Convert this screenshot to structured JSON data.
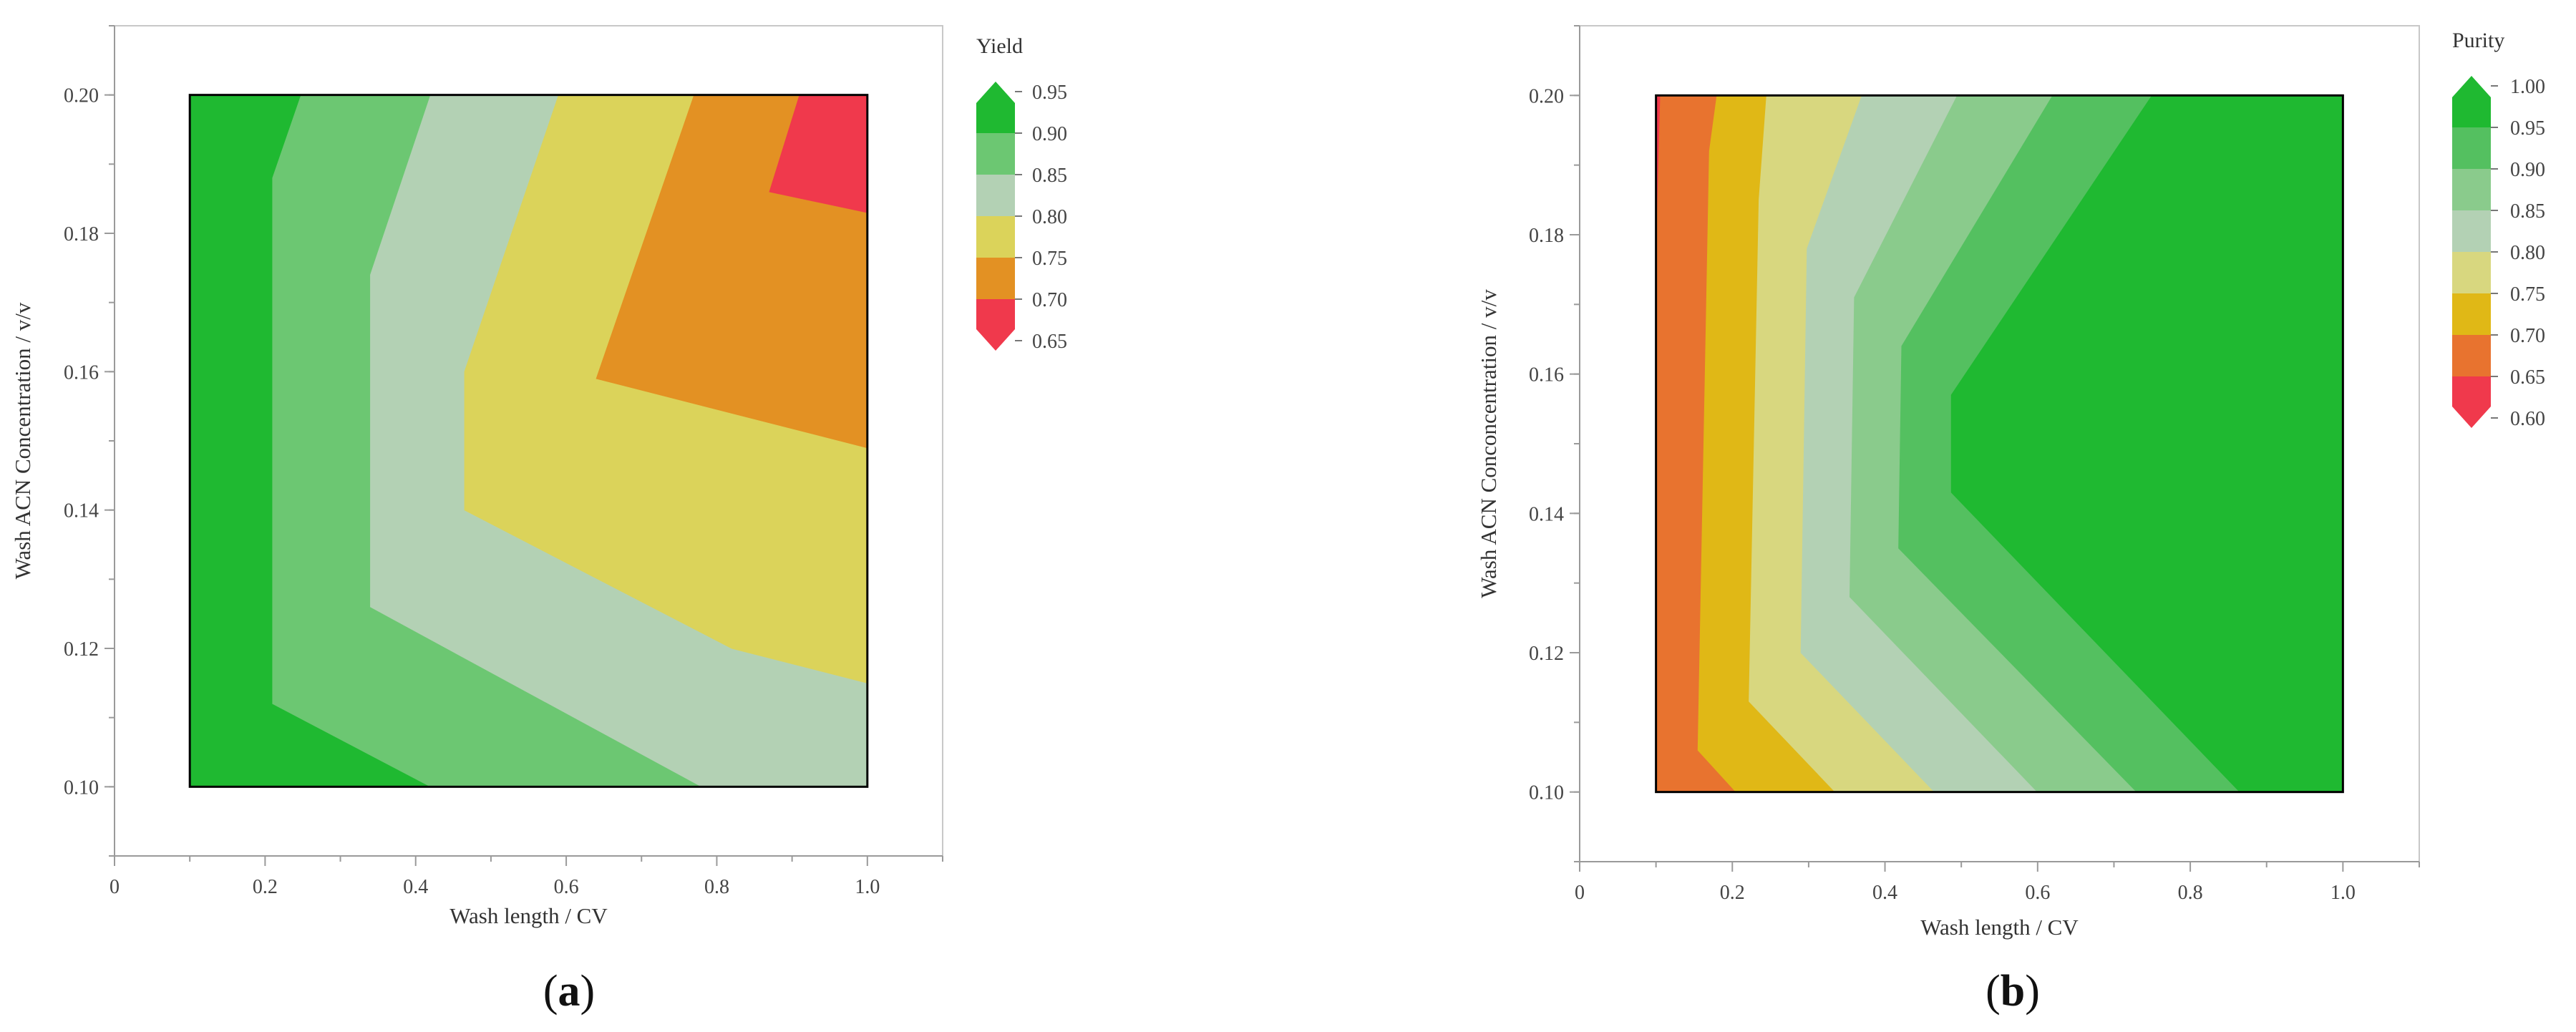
{
  "colors": {
    "green_dark": "#1fb931",
    "green_mid": "#54c060",
    "green_light": "#6cc772",
    "green_pale": "#8acb8c",
    "sage": "#b3d1b4",
    "khaki": "#d8d77f",
    "yellow": "#dbd35a",
    "mustard": "#e0b816",
    "orange": "#e39123",
    "orange_red": "#e8732f",
    "red": "#f0394c"
  },
  "chart_data": [
    {
      "id": "a",
      "type": "contour",
      "caption_letter": "a",
      "xlabel": "Wash length / CV",
      "ylabel": "Wash ACN Concentration / v/v",
      "xlim": [
        0,
        1.1
      ],
      "ylim": [
        0.09,
        0.21
      ],
      "xticks": [
        "0",
        "0.2",
        "0.4",
        "0.6",
        "0.8",
        "1.0"
      ],
      "yticks": [
        "0.10",
        "0.12",
        "0.14",
        "0.16",
        "0.18",
        "0.20"
      ],
      "data_region": {
        "x": [
          0.1,
          1.0
        ],
        "y": [
          0.1,
          0.2
        ]
      },
      "legend": {
        "title": "Yield",
        "levels": [
          "0.95",
          "0.90",
          "0.85",
          "0.80",
          "0.75",
          "0.70",
          "0.65"
        ],
        "colors": [
          "#1fb931",
          "#6cc772",
          "#b3d1b4",
          "#dbd35a",
          "#e39123",
          "#f0394c"
        ]
      },
      "regions": [
        {
          "level": "0.90-0.95",
          "color": "#1fb931",
          "points": [
            [
              0.1,
              0.1
            ],
            [
              0.1,
              0.2
            ],
            [
              1.0,
              0.2
            ],
            [
              1.0,
              0.1
            ]
          ]
        },
        {
          "level": "0.85-0.90",
          "color": "#6cc772",
          "points": [
            [
              0.248,
              0.2
            ],
            [
              0.21,
              0.188
            ],
            [
              0.21,
              0.112
            ],
            [
              0.42,
              0.1
            ],
            [
              1.0,
              0.1
            ],
            [
              1.0,
              0.2
            ]
          ]
        },
        {
          "level": "0.80-0.85",
          "color": "#b3d1b4",
          "points": [
            [
              0.42,
              0.2
            ],
            [
              0.34,
              0.174
            ],
            [
              0.34,
              0.126
            ],
            [
              0.78,
              0.1
            ],
            [
              1.0,
              0.1
            ],
            [
              1.0,
              0.2
            ]
          ]
        },
        {
          "level": "0.75-0.80",
          "color": "#dbd35a",
          "points": [
            [
              0.59,
              0.2
            ],
            [
              0.465,
              0.16
            ],
            [
              0.465,
              0.14
            ],
            [
              0.82,
              0.12
            ],
            [
              1.0,
              0.115
            ],
            [
              1.0,
              0.2
            ]
          ]
        },
        {
          "level": "0.70-0.75",
          "color": "#e39123",
          "points": [
            [
              0.77,
              0.2
            ],
            [
              0.64,
              0.159
            ],
            [
              1.0,
              0.149
            ],
            [
              1.0,
              0.2
            ]
          ]
        },
        {
          "level": "0.65-0.70",
          "color": "#f0394c",
          "points": [
            [
              0.91,
              0.2
            ],
            [
              0.87,
              0.186
            ],
            [
              1.0,
              0.183
            ],
            [
              1.0,
              0.2
            ]
          ]
        }
      ]
    },
    {
      "id": "b",
      "type": "contour",
      "caption_letter": "b",
      "xlabel": "Wash length / CV",
      "ylabel": "Wash ACN Conconcentration / v/v",
      "xlim": [
        0,
        1.1
      ],
      "ylim": [
        0.09,
        0.21
      ],
      "xticks": [
        "0",
        "0.2",
        "0.4",
        "0.6",
        "0.8",
        "1.0"
      ],
      "yticks": [
        "0.10",
        "0.12",
        "0.14",
        "0.16",
        "0.18",
        "0.20"
      ],
      "data_region": {
        "x": [
          0.1,
          1.0
        ],
        "y": [
          0.1,
          0.2
        ]
      },
      "legend": {
        "title": "Purity",
        "levels": [
          "1.00",
          "0.95",
          "0.90",
          "0.85",
          "0.80",
          "0.75",
          "0.70",
          "0.65",
          "0.60"
        ],
        "colors": [
          "#1fb931",
          "#54c060",
          "#8acb8c",
          "#b3d1b4",
          "#d8d77f",
          "#e0b816",
          "#e8732f",
          "#f0394c"
        ]
      },
      "regions": [
        {
          "level": "0.60-0.65",
          "color": "#f0394c",
          "points": [
            [
              0.1,
              0.1
            ],
            [
              0.1,
              0.2
            ],
            [
              1.0,
              0.2
            ],
            [
              1.0,
              0.1
            ]
          ]
        },
        {
          "level": "0.65-0.70",
          "color": "#e8732f",
          "points": [
            [
              0.106,
              0.2
            ],
            [
              0.101,
              0.18
            ],
            [
              0.1,
              0.1
            ],
            [
              1.0,
              0.1
            ],
            [
              1.0,
              0.2
            ]
          ]
        },
        {
          "level": "0.70-0.75",
          "color": "#e0b816",
          "points": [
            [
              0.18,
              0.2
            ],
            [
              0.17,
              0.192
            ],
            [
              0.155,
              0.106
            ],
            [
              0.205,
              0.1
            ],
            [
              1.0,
              0.1
            ],
            [
              1.0,
              0.2
            ]
          ]
        },
        {
          "level": "0.75-0.80",
          "color": "#d8d77f",
          "points": [
            [
              0.245,
              0.2
            ],
            [
              0.235,
              0.185
            ],
            [
              0.222,
              0.113
            ],
            [
              0.335,
              0.1
            ],
            [
              1.0,
              0.1
            ],
            [
              1.0,
              0.2
            ]
          ]
        },
        {
          "level": "0.80-0.85",
          "color": "#b3d1b4",
          "points": [
            [
              0.37,
              0.2
            ],
            [
              0.298,
              0.178
            ],
            [
              0.29,
              0.12
            ],
            [
              0.465,
              0.1
            ],
            [
              1.0,
              0.1
            ],
            [
              1.0,
              0.2
            ]
          ]
        },
        {
          "level": "0.85-0.90",
          "color": "#8acb8c",
          "points": [
            [
              0.495,
              0.2
            ],
            [
              0.36,
              0.171
            ],
            [
              0.354,
              0.128
            ],
            [
              0.6,
              0.1
            ],
            [
              1.0,
              0.1
            ],
            [
              1.0,
              0.2
            ]
          ]
        },
        {
          "level": "0.90-0.95",
          "color": "#54c060",
          "points": [
            [
              0.62,
              0.2
            ],
            [
              0.422,
              0.164
            ],
            [
              0.418,
              0.135
            ],
            [
              0.73,
              0.1
            ],
            [
              1.0,
              0.1
            ],
            [
              1.0,
              0.2
            ]
          ]
        },
        {
          "level": "0.95-1.00",
          "color": "#1fb931",
          "points": [
            [
              0.75,
              0.2
            ],
            [
              0.487,
              0.157
            ],
            [
              0.487,
              0.143
            ],
            [
              0.865,
              0.1
            ],
            [
              1.0,
              0.1
            ],
            [
              1.0,
              0.2
            ]
          ]
        }
      ]
    }
  ]
}
